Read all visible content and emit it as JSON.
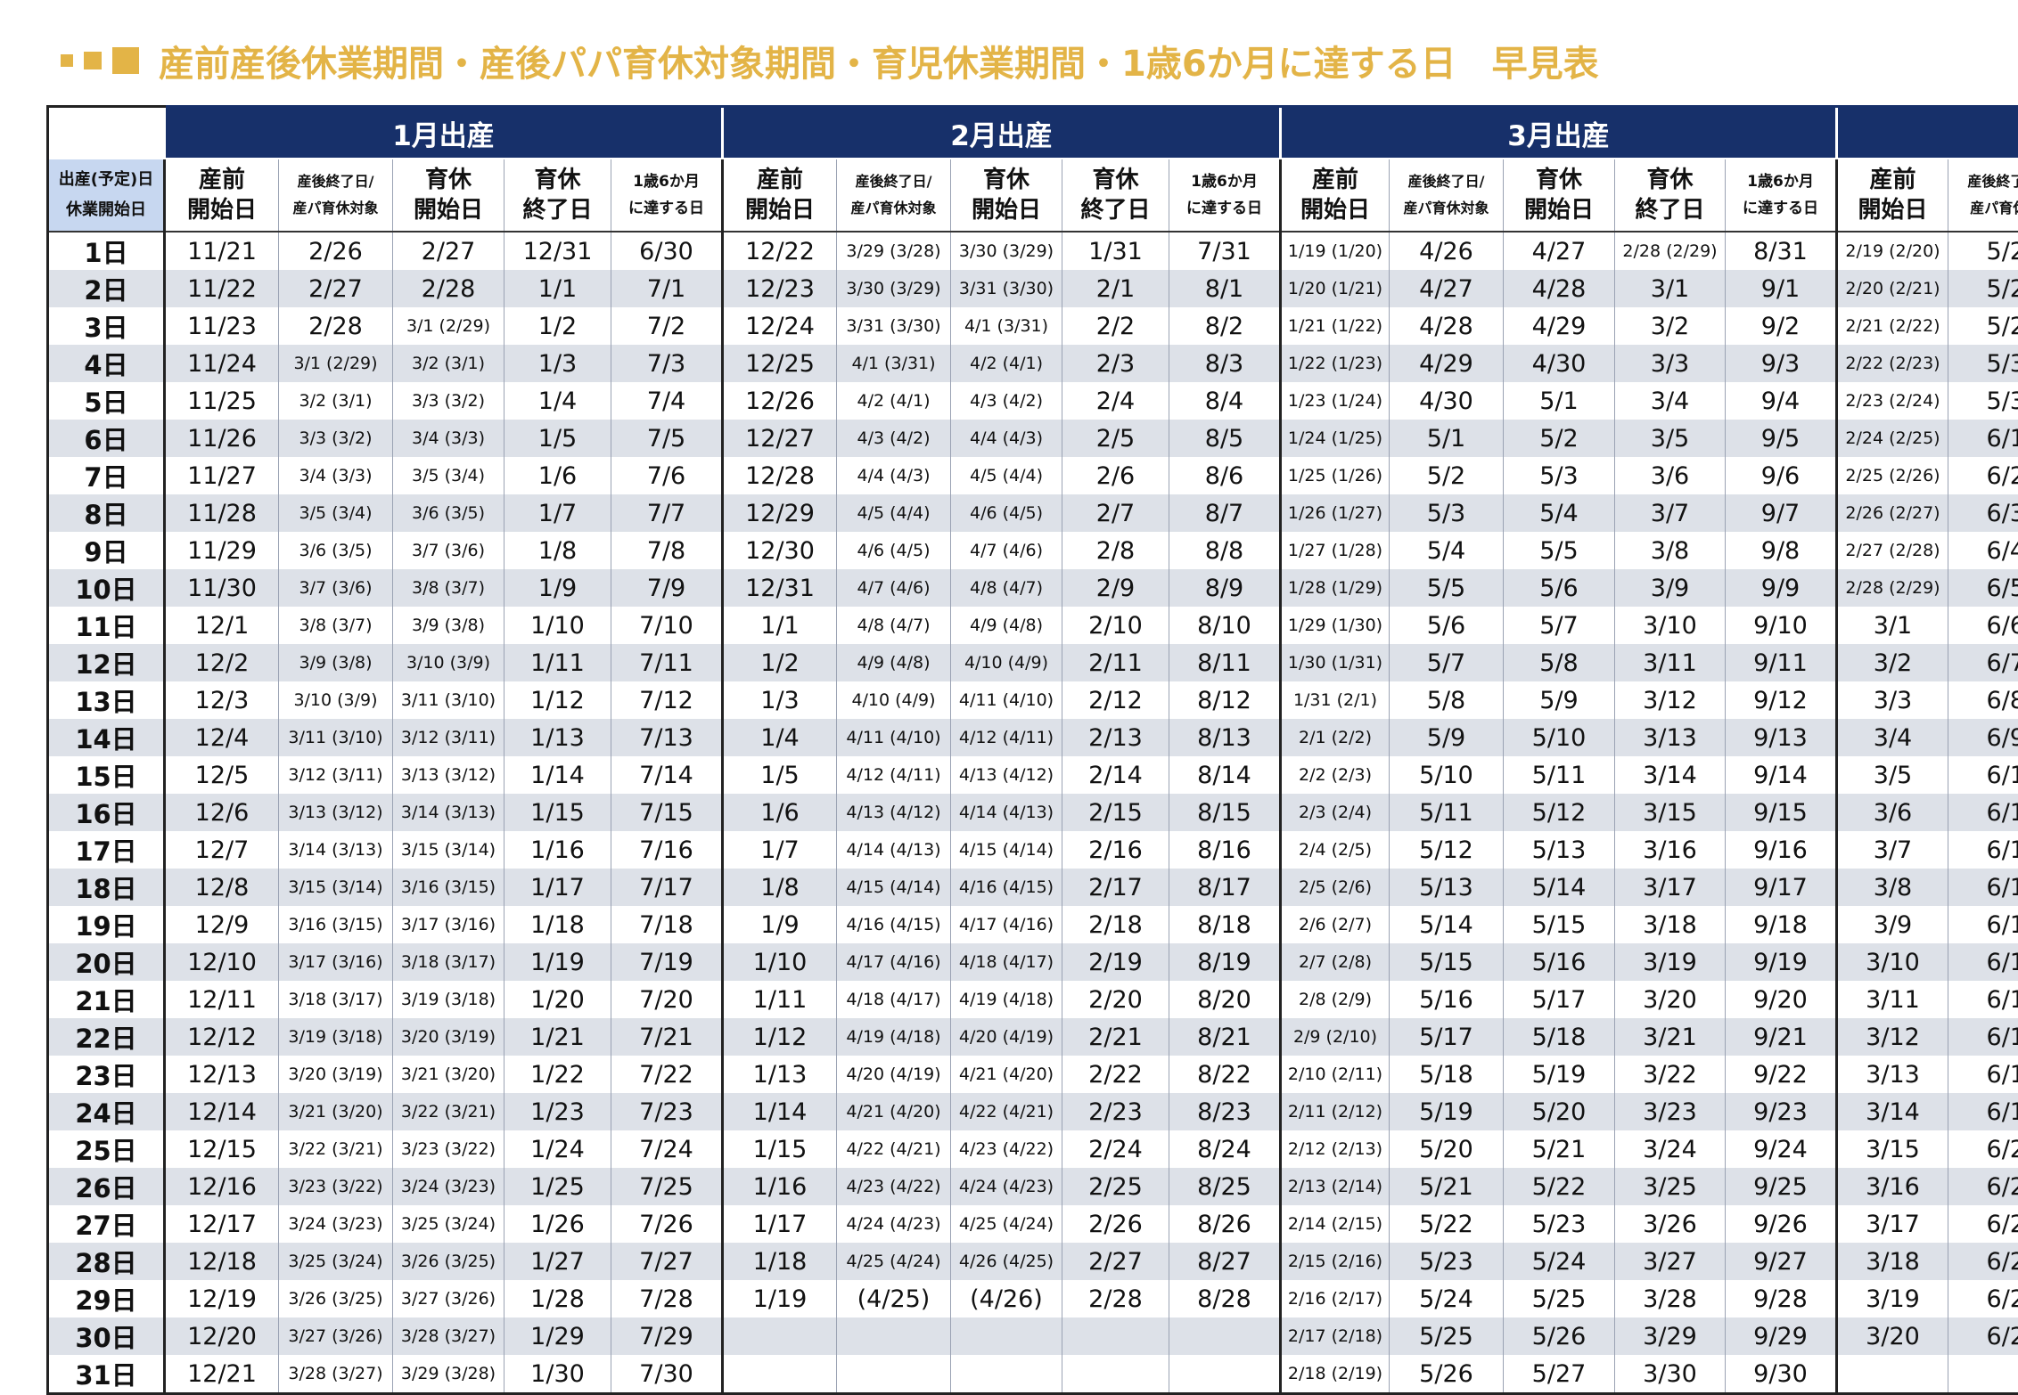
{
  "title": "産前産後休業期間・産後パパ育休対象期間・育児休業期間・1歳6か月に達する日　早見表",
  "header": {
    "corner": [
      "出産(予定)日",
      "休業開始日"
    ],
    "months": [
      "1月出産",
      "2月出産",
      "3月出産",
      ""
    ],
    "col_labels": [
      [
        "産前",
        "開始日"
      ],
      [
        "産後終了日/",
        "産パ育休対象"
      ],
      [
        "育休",
        "開始日"
      ],
      [
        "育休",
        "終了日"
      ],
      [
        "1歳6か月",
        "に達する日"
      ]
    ]
  },
  "days": [
    "1日",
    "2日",
    "3日",
    "4日",
    "5日",
    "6日",
    "7日",
    "8日",
    "9日",
    "10日",
    "11日",
    "12日",
    "13日",
    "14日",
    "15日",
    "16日",
    "17日",
    "18日",
    "19日",
    "20日",
    "21日",
    "22日",
    "23日",
    "24日",
    "25日",
    "26日",
    "27日",
    "28日",
    "29日",
    "30日",
    "31日"
  ],
  "jan": [
    [
      "11/21",
      "2/26",
      "2/27",
      "12/31",
      "6/30"
    ],
    [
      "11/22",
      "2/27",
      "2/28",
      "1/1",
      "7/1"
    ],
    [
      "11/23",
      "2/28",
      "3/1 (2/29)",
      "1/2",
      "7/2"
    ],
    [
      "11/24",
      "3/1 (2/29)",
      "3/2 (3/1)",
      "1/3",
      "7/3"
    ],
    [
      "11/25",
      "3/2 (3/1)",
      "3/3 (3/2)",
      "1/4",
      "7/4"
    ],
    [
      "11/26",
      "3/3 (3/2)",
      "3/4 (3/3)",
      "1/5",
      "7/5"
    ],
    [
      "11/27",
      "3/4 (3/3)",
      "3/5 (3/4)",
      "1/6",
      "7/6"
    ],
    [
      "11/28",
      "3/5 (3/4)",
      "3/6 (3/5)",
      "1/7",
      "7/7"
    ],
    [
      "11/29",
      "3/6 (3/5)",
      "3/7 (3/6)",
      "1/8",
      "7/8"
    ],
    [
      "11/30",
      "3/7 (3/6)",
      "3/8 (3/7)",
      "1/9",
      "7/9"
    ],
    [
      "12/1",
      "3/8 (3/7)",
      "3/9 (3/8)",
      "1/10",
      "7/10"
    ],
    [
      "12/2",
      "3/9 (3/8)",
      "3/10 (3/9)",
      "1/11",
      "7/11"
    ],
    [
      "12/3",
      "3/10 (3/9)",
      "3/11 (3/10)",
      "1/12",
      "7/12"
    ],
    [
      "12/4",
      "3/11 (3/10)",
      "3/12 (3/11)",
      "1/13",
      "7/13"
    ],
    [
      "12/5",
      "3/12 (3/11)",
      "3/13 (3/12)",
      "1/14",
      "7/14"
    ],
    [
      "12/6",
      "3/13 (3/12)",
      "3/14 (3/13)",
      "1/15",
      "7/15"
    ],
    [
      "12/7",
      "3/14 (3/13)",
      "3/15 (3/14)",
      "1/16",
      "7/16"
    ],
    [
      "12/8",
      "3/15 (3/14)",
      "3/16 (3/15)",
      "1/17",
      "7/17"
    ],
    [
      "12/9",
      "3/16 (3/15)",
      "3/17 (3/16)",
      "1/18",
      "7/18"
    ],
    [
      "12/10",
      "3/17 (3/16)",
      "3/18 (3/17)",
      "1/19",
      "7/19"
    ],
    [
      "12/11",
      "3/18 (3/17)",
      "3/19 (3/18)",
      "1/20",
      "7/20"
    ],
    [
      "12/12",
      "3/19 (3/18)",
      "3/20 (3/19)",
      "1/21",
      "7/21"
    ],
    [
      "12/13",
      "3/20 (3/19)",
      "3/21 (3/20)",
      "1/22",
      "7/22"
    ],
    [
      "12/14",
      "3/21 (3/20)",
      "3/22 (3/21)",
      "1/23",
      "7/23"
    ],
    [
      "12/15",
      "3/22 (3/21)",
      "3/23 (3/22)",
      "1/24",
      "7/24"
    ],
    [
      "12/16",
      "3/23 (3/22)",
      "3/24 (3/23)",
      "1/25",
      "7/25"
    ],
    [
      "12/17",
      "3/24 (3/23)",
      "3/25 (3/24)",
      "1/26",
      "7/26"
    ],
    [
      "12/18",
      "3/25 (3/24)",
      "3/26 (3/25)",
      "1/27",
      "7/27"
    ],
    [
      "12/19",
      "3/26 (3/25)",
      "3/27 (3/26)",
      "1/28",
      "7/28"
    ],
    [
      "12/20",
      "3/27 (3/26)",
      "3/28 (3/27)",
      "1/29",
      "7/29"
    ],
    [
      "12/21",
      "3/28 (3/27)",
      "3/29 (3/28)",
      "1/30",
      "7/30"
    ]
  ],
  "feb": [
    [
      "12/22",
      "3/29 (3/28)",
      "3/30 (3/29)",
      "1/31",
      "7/31"
    ],
    [
      "12/23",
      "3/30 (3/29)",
      "3/31 (3/30)",
      "2/1",
      "8/1"
    ],
    [
      "12/24",
      "3/31 (3/30)",
      "4/1 (3/31)",
      "2/2",
      "8/2"
    ],
    [
      "12/25",
      "4/1 (3/31)",
      "4/2 (4/1)",
      "2/3",
      "8/3"
    ],
    [
      "12/26",
      "4/2 (4/1)",
      "4/3 (4/2)",
      "2/4",
      "8/4"
    ],
    [
      "12/27",
      "4/3 (4/2)",
      "4/4 (4/3)",
      "2/5",
      "8/5"
    ],
    [
      "12/28",
      "4/4 (4/3)",
      "4/5 (4/4)",
      "2/6",
      "8/6"
    ],
    [
      "12/29",
      "4/5 (4/4)",
      "4/6 (4/5)",
      "2/7",
      "8/7"
    ],
    [
      "12/30",
      "4/6 (4/5)",
      "4/7 (4/6)",
      "2/8",
      "8/8"
    ],
    [
      "12/31",
      "4/7 (4/6)",
      "4/8 (4/7)",
      "2/9",
      "8/9"
    ],
    [
      "1/1",
      "4/8 (4/7)",
      "4/9 (4/8)",
      "2/10",
      "8/10"
    ],
    [
      "1/2",
      "4/9 (4/8)",
      "4/10 (4/9)",
      "2/11",
      "8/11"
    ],
    [
      "1/3",
      "4/10 (4/9)",
      "4/11 (4/10)",
      "2/12",
      "8/12"
    ],
    [
      "1/4",
      "4/11 (4/10)",
      "4/12 (4/11)",
      "2/13",
      "8/13"
    ],
    [
      "1/5",
      "4/12 (4/11)",
      "4/13 (4/12)",
      "2/14",
      "8/14"
    ],
    [
      "1/6",
      "4/13 (4/12)",
      "4/14 (4/13)",
      "2/15",
      "8/15"
    ],
    [
      "1/7",
      "4/14 (4/13)",
      "4/15 (4/14)",
      "2/16",
      "8/16"
    ],
    [
      "1/8",
      "4/15 (4/14)",
      "4/16 (4/15)",
      "2/17",
      "8/17"
    ],
    [
      "1/9",
      "4/16 (4/15)",
      "4/17 (4/16)",
      "2/18",
      "8/18"
    ],
    [
      "1/10",
      "4/17 (4/16)",
      "4/18 (4/17)",
      "2/19",
      "8/19"
    ],
    [
      "1/11",
      "4/18 (4/17)",
      "4/19 (4/18)",
      "2/20",
      "8/20"
    ],
    [
      "1/12",
      "4/19 (4/18)",
      "4/20 (4/19)",
      "2/21",
      "8/21"
    ],
    [
      "1/13",
      "4/20 (4/19)",
      "4/21 (4/20)",
      "2/22",
      "8/22"
    ],
    [
      "1/14",
      "4/21 (4/20)",
      "4/22 (4/21)",
      "2/23",
      "8/23"
    ],
    [
      "1/15",
      "4/22 (4/21)",
      "4/23 (4/22)",
      "2/24",
      "8/24"
    ],
    [
      "1/16",
      "4/23 (4/22)",
      "4/24 (4/23)",
      "2/25",
      "8/25"
    ],
    [
      "1/17",
      "4/24 (4/23)",
      "4/25 (4/24)",
      "2/26",
      "8/26"
    ],
    [
      "1/18",
      "4/25 (4/24)",
      "4/26 (4/25)",
      "2/27",
      "8/27"
    ],
    [
      "1/19",
      "(4/25)",
      "(4/26)",
      "2/28",
      "8/28"
    ],
    [
      "",
      "",
      "",
      "",
      ""
    ],
    [
      "",
      "",
      "",
      "",
      ""
    ]
  ],
  "mar": [
    [
      "1/19 (1/20)",
      "4/26",
      "4/27",
      "2/28 (2/29)",
      "8/31"
    ],
    [
      "1/20 (1/21)",
      "4/27",
      "4/28",
      "3/1",
      "9/1"
    ],
    [
      "1/21 (1/22)",
      "4/28",
      "4/29",
      "3/2",
      "9/2"
    ],
    [
      "1/22 (1/23)",
      "4/29",
      "4/30",
      "3/3",
      "9/3"
    ],
    [
      "1/23 (1/24)",
      "4/30",
      "5/1",
      "3/4",
      "9/4"
    ],
    [
      "1/24 (1/25)",
      "5/1",
      "5/2",
      "3/5",
      "9/5"
    ],
    [
      "1/25 (1/26)",
      "5/2",
      "5/3",
      "3/6",
      "9/6"
    ],
    [
      "1/26 (1/27)",
      "5/3",
      "5/4",
      "3/7",
      "9/7"
    ],
    [
      "1/27 (1/28)",
      "5/4",
      "5/5",
      "3/8",
      "9/8"
    ],
    [
      "1/28 (1/29)",
      "5/5",
      "5/6",
      "3/9",
      "9/9"
    ],
    [
      "1/29 (1/30)",
      "5/6",
      "5/7",
      "3/10",
      "9/10"
    ],
    [
      "1/30 (1/31)",
      "5/7",
      "5/8",
      "3/11",
      "9/11"
    ],
    [
      "1/31 (2/1)",
      "5/8",
      "5/9",
      "3/12",
      "9/12"
    ],
    [
      "2/1 (2/2)",
      "5/9",
      "5/10",
      "3/13",
      "9/13"
    ],
    [
      "2/2 (2/3)",
      "5/10",
      "5/11",
      "3/14",
      "9/14"
    ],
    [
      "2/3 (2/4)",
      "5/11",
      "5/12",
      "3/15",
      "9/15"
    ],
    [
      "2/4 (2/5)",
      "5/12",
      "5/13",
      "3/16",
      "9/16"
    ],
    [
      "2/5 (2/6)",
      "5/13",
      "5/14",
      "3/17",
      "9/17"
    ],
    [
      "2/6 (2/7)",
      "5/14",
      "5/15",
      "3/18",
      "9/18"
    ],
    [
      "2/7 (2/8)",
      "5/15",
      "5/16",
      "3/19",
      "9/19"
    ],
    [
      "2/8 (2/9)",
      "5/16",
      "5/17",
      "3/20",
      "9/20"
    ],
    [
      "2/9 (2/10)",
      "5/17",
      "5/18",
      "3/21",
      "9/21"
    ],
    [
      "2/10 (2/11)",
      "5/18",
      "5/19",
      "3/22",
      "9/22"
    ],
    [
      "2/11 (2/12)",
      "5/19",
      "5/20",
      "3/23",
      "9/23"
    ],
    [
      "2/12 (2/13)",
      "5/20",
      "5/21",
      "3/24",
      "9/24"
    ],
    [
      "2/13 (2/14)",
      "5/21",
      "5/22",
      "3/25",
      "9/25"
    ],
    [
      "2/14 (2/15)",
      "5/22",
      "5/23",
      "3/26",
      "9/26"
    ],
    [
      "2/15 (2/16)",
      "5/23",
      "5/24",
      "3/27",
      "9/27"
    ],
    [
      "2/16 (2/17)",
      "5/24",
      "5/25",
      "3/28",
      "9/28"
    ],
    [
      "2/17 (2/18)",
      "5/25",
      "5/26",
      "3/29",
      "9/29"
    ],
    [
      "2/18 (2/19)",
      "5/26",
      "5/27",
      "3/30",
      "9/30"
    ]
  ],
  "apr_partial": [
    [
      "2/19 (2/20)",
      "5/2"
    ],
    [
      "2/20 (2/21)",
      "5/2"
    ],
    [
      "2/21 (2/22)",
      "5/2"
    ],
    [
      "2/22 (2/23)",
      "5/3"
    ],
    [
      "2/23 (2/24)",
      "5/3"
    ],
    [
      "2/24 (2/25)",
      "6/1"
    ],
    [
      "2/25 (2/26)",
      "6/2"
    ],
    [
      "2/26 (2/27)",
      "6/3"
    ],
    [
      "2/27 (2/28)",
      "6/4"
    ],
    [
      "2/28 (2/29)",
      "6/5"
    ],
    [
      "3/1",
      "6/6"
    ],
    [
      "3/2",
      "6/7"
    ],
    [
      "3/3",
      "6/8"
    ],
    [
      "3/4",
      "6/9"
    ],
    [
      "3/5",
      "6/1"
    ],
    [
      "3/6",
      "6/1"
    ],
    [
      "3/7",
      "6/1"
    ],
    [
      "3/8",
      "6/1"
    ],
    [
      "3/9",
      "6/1"
    ],
    [
      "3/10",
      "6/1"
    ],
    [
      "3/11",
      "6/1"
    ],
    [
      "3/12",
      "6/1"
    ],
    [
      "3/13",
      "6/1"
    ],
    [
      "3/14",
      "6/1"
    ],
    [
      "3/15",
      "6/2"
    ],
    [
      "3/16",
      "6/2"
    ],
    [
      "3/17",
      "6/2"
    ],
    [
      "3/18",
      "6/2"
    ],
    [
      "3/19",
      "6/2"
    ],
    [
      "3/20",
      "6/2"
    ],
    [
      "",
      ""
    ]
  ],
  "apr_header": [
    [
      "産前",
      "開始日"
    ],
    [
      "産後終了日/",
      "産パ育休対"
    ]
  ],
  "colors": {
    "navy": "#17306a",
    "gold": "#e3b447",
    "stripe": "#dde1e8",
    "corner": "#c7d7f0"
  }
}
